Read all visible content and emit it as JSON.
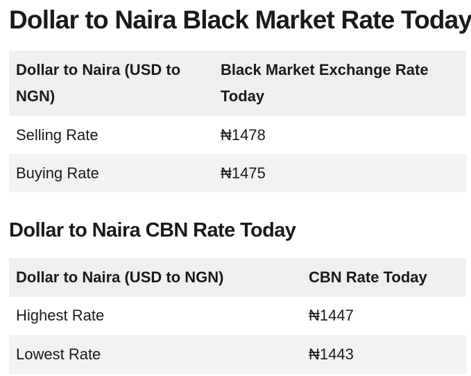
{
  "sections": [
    {
      "title": "Dollar to Naira Black Market Rate Today",
      "table": {
        "header": [
          "Dollar to Naira (USD to NGN)",
          "Black Market Exchange Rate Today"
        ],
        "rows": [
          [
            "Selling Rate",
            "₦1478"
          ],
          [
            "Buying Rate",
            "₦1475"
          ]
        ]
      }
    },
    {
      "title": "Dollar to Naira CBN Rate Today",
      "table": {
        "header": [
          "Dollar to Naira (USD to NGN)",
          "CBN Rate Today"
        ],
        "rows": [
          [
            "Highest Rate",
            "₦1447"
          ],
          [
            "Lowest Rate",
            "₦1443"
          ]
        ]
      }
    }
  ]
}
